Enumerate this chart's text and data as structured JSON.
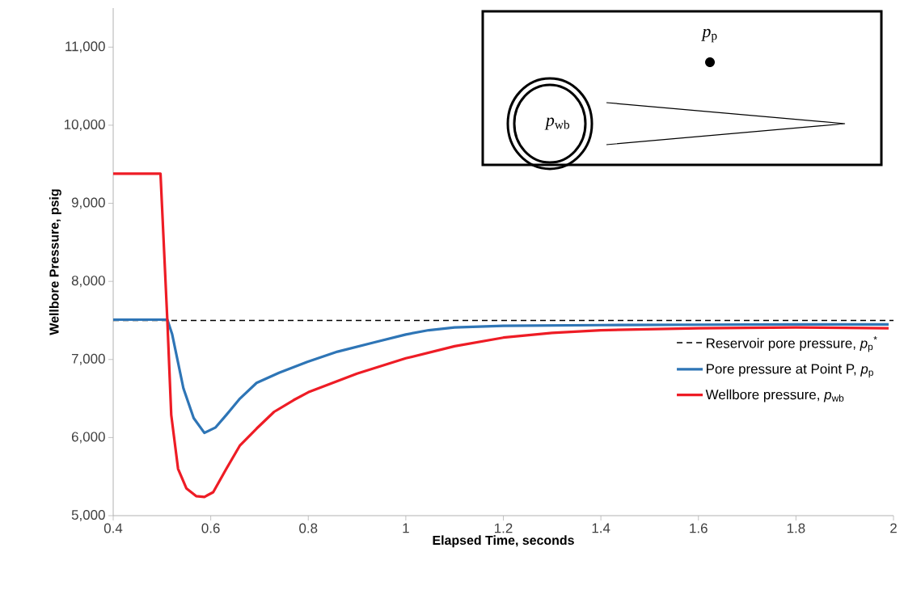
{
  "chart_data": {
    "type": "line",
    "xlabel": "Elapsed Time, seconds",
    "ylabel": "Wellbore Pressure, psig",
    "xlim": [
      0.4,
      2.0
    ],
    "xticks": [
      0.4,
      0.6,
      0.8,
      {
        "value": 1.0,
        "label": "1"
      },
      1.2,
      1.4,
      1.6,
      1.8,
      {
        "value": 2.0,
        "label": "2"
      }
    ],
    "ylim": [
      5000,
      11500
    ],
    "yticks": [
      {
        "value": 5000,
        "label": "5,000"
      },
      {
        "value": 6000,
        "label": "6,000"
      },
      {
        "value": 7000,
        "label": "7,000"
      },
      {
        "value": 8000,
        "label": "8,000"
      },
      {
        "value": 9000,
        "label": "9,000"
      },
      {
        "value": 10000,
        "label": "10,000"
      },
      {
        "value": 11000,
        "label": "11,000"
      }
    ],
    "ref_lines": [
      {
        "axis": "y",
        "value": 7500,
        "label": "Reservoir pore pressure, *p*$_{p}$$^{*}$",
        "color": "#000000",
        "line_style": "dashed"
      }
    ],
    "series": [
      {
        "name": "Pore pressure at Point P, *p*$_{p}$",
        "color": "#2e75b6",
        "x": [
          0.4,
          0.511,
          0.521,
          0.544,
          0.565,
          0.587,
          0.61,
          0.632,
          0.66,
          0.694,
          0.74,
          0.798,
          0.86,
          0.936,
          1.0,
          1.047,
          1.1,
          1.2,
          1.4,
          1.6,
          1.8,
          1.99
        ],
        "values": [
          7510,
          7510,
          7320,
          6630,
          6250,
          6060,
          6130,
          6290,
          6500,
          6700,
          6830,
          6970,
          7100,
          7220,
          7320,
          7375,
          7410,
          7430,
          7440,
          7445,
          7450,
          7450
        ]
      },
      {
        "name": "Wellbore pressure, *p*$_{wb}$",
        "color": "#ee1c25",
        "x": [
          0.4,
          0.497,
          0.511,
          0.519,
          0.533,
          0.55,
          0.57,
          0.587,
          0.605,
          0.632,
          0.66,
          0.694,
          0.73,
          0.77,
          0.8,
          0.9,
          1.0,
          1.1,
          1.2,
          1.3,
          1.4,
          1.6,
          1.8,
          1.99
        ],
        "values": [
          9380,
          9380,
          7500,
          6290,
          5600,
          5350,
          5250,
          5240,
          5300,
          5600,
          5900,
          6115,
          6330,
          6480,
          6580,
          6820,
          7015,
          7170,
          7280,
          7340,
          7375,
          7400,
          7410,
          7400
        ]
      }
    ],
    "legend": "right",
    "annotations": [
      "*p*$_{p}$",
      "*p*$_{wb}$"
    ]
  }
}
